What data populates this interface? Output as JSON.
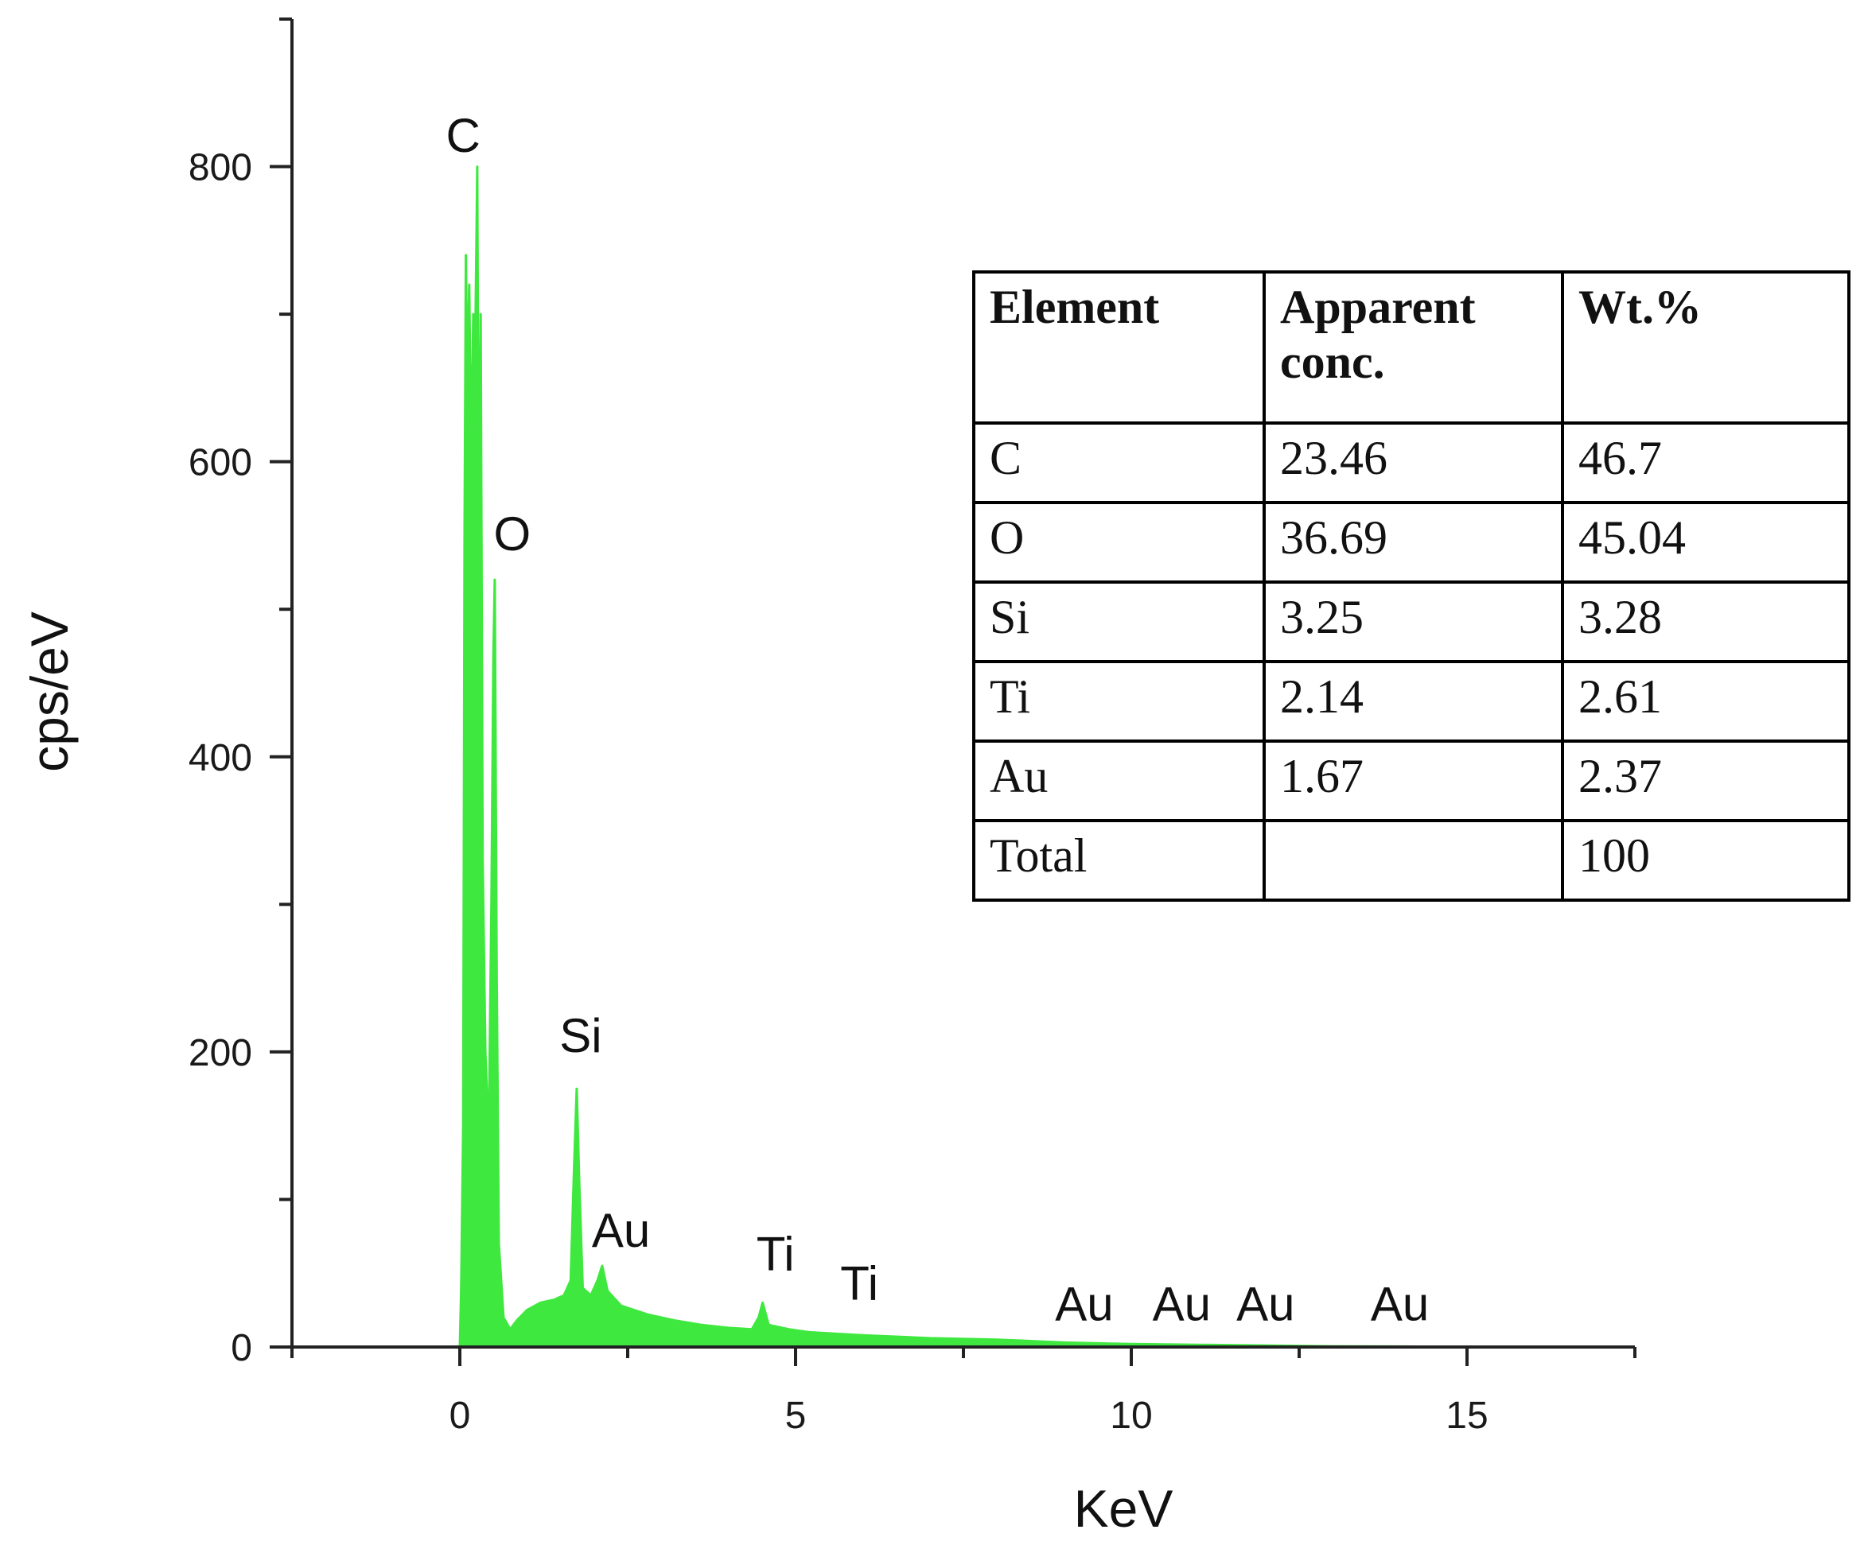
{
  "chart_data": {
    "type": "line",
    "xlabel": "KeV",
    "ylabel": "cps/eV",
    "xlim": [
      -2.5,
      17.5
    ],
    "ylim": [
      0,
      900
    ],
    "x_ticks": [
      0,
      5,
      10,
      15
    ],
    "y_ticks": [
      0,
      200,
      400,
      600,
      800
    ],
    "grid": false,
    "series_color": "#3ee83e",
    "spectrum": [
      {
        "x": 0.0,
        "y": 0
      },
      {
        "x": 0.02,
        "y": 40
      },
      {
        "x": 0.05,
        "y": 150
      },
      {
        "x": 0.07,
        "y": 550
      },
      {
        "x": 0.09,
        "y": 740
      },
      {
        "x": 0.11,
        "y": 650
      },
      {
        "x": 0.14,
        "y": 720
      },
      {
        "x": 0.17,
        "y": 600
      },
      {
        "x": 0.2,
        "y": 700
      },
      {
        "x": 0.23,
        "y": 680
      },
      {
        "x": 0.26,
        "y": 800
      },
      {
        "x": 0.28,
        "y": 560
      },
      {
        "x": 0.31,
        "y": 700
      },
      {
        "x": 0.34,
        "y": 330
      },
      {
        "x": 0.38,
        "y": 200
      },
      {
        "x": 0.43,
        "y": 140
      },
      {
        "x": 0.47,
        "y": 300
      },
      {
        "x": 0.5,
        "y": 470
      },
      {
        "x": 0.52,
        "y": 520
      },
      {
        "x": 0.55,
        "y": 250
      },
      {
        "x": 0.58,
        "y": 70
      },
      {
        "x": 0.65,
        "y": 20
      },
      {
        "x": 0.75,
        "y": 12
      },
      {
        "x": 0.85,
        "y": 18
      },
      {
        "x": 1.0,
        "y": 25
      },
      {
        "x": 1.2,
        "y": 30
      },
      {
        "x": 1.4,
        "y": 32
      },
      {
        "x": 1.55,
        "y": 35
      },
      {
        "x": 1.65,
        "y": 45
      },
      {
        "x": 1.7,
        "y": 120
      },
      {
        "x": 1.74,
        "y": 175
      },
      {
        "x": 1.78,
        "y": 110
      },
      {
        "x": 1.83,
        "y": 40
      },
      {
        "x": 1.95,
        "y": 35
      },
      {
        "x": 2.05,
        "y": 45
      },
      {
        "x": 2.12,
        "y": 55
      },
      {
        "x": 2.2,
        "y": 38
      },
      {
        "x": 2.4,
        "y": 28
      },
      {
        "x": 2.8,
        "y": 22
      },
      {
        "x": 3.2,
        "y": 18
      },
      {
        "x": 3.6,
        "y": 15
      },
      {
        "x": 4.0,
        "y": 13
      },
      {
        "x": 4.35,
        "y": 12
      },
      {
        "x": 4.45,
        "y": 20
      },
      {
        "x": 4.51,
        "y": 30
      },
      {
        "x": 4.6,
        "y": 15
      },
      {
        "x": 4.9,
        "y": 12
      },
      {
        "x": 5.2,
        "y": 10
      },
      {
        "x": 6.0,
        "y": 8
      },
      {
        "x": 7.0,
        "y": 6
      },
      {
        "x": 8.0,
        "y": 5
      },
      {
        "x": 9.0,
        "y": 3
      },
      {
        "x": 10.0,
        "y": 2
      },
      {
        "x": 11.0,
        "y": 1.5
      },
      {
        "x": 12.0,
        "y": 1
      },
      {
        "x": 13.0,
        "y": 0.5
      },
      {
        "x": 14.0,
        "y": 0.3
      },
      {
        "x": 15.0,
        "y": 0
      }
    ],
    "peak_labels": [
      {
        "text": "C",
        "x": 0.05,
        "y": 810
      },
      {
        "text": "O",
        "x": 0.78,
        "y": 540
      },
      {
        "text": "Si",
        "x": 1.8,
        "y": 200
      },
      {
        "text": "Au",
        "x": 2.4,
        "y": 68
      },
      {
        "text": "Ti",
        "x": 4.7,
        "y": 52
      },
      {
        "text": "Ti",
        "x": 5.95,
        "y": 32
      },
      {
        "text": "Au",
        "x": 9.3,
        "y": 18
      },
      {
        "text": "Au",
        "x": 10.75,
        "y": 18
      },
      {
        "text": "Au",
        "x": 12.0,
        "y": 18
      },
      {
        "text": "Au",
        "x": 14.0,
        "y": 18
      }
    ]
  },
  "table": {
    "headers": [
      "Element",
      "Apparent conc.",
      "Wt.%"
    ],
    "rows": [
      [
        "C",
        "23.46",
        "46.7"
      ],
      [
        "O",
        "36.69",
        "45.04"
      ],
      [
        "Si",
        "3.25",
        "3.28"
      ],
      [
        "Ti",
        "2.14",
        "2.61"
      ],
      [
        "Au",
        "1.67",
        "2.37"
      ],
      [
        "Total",
        "",
        "100"
      ]
    ]
  }
}
